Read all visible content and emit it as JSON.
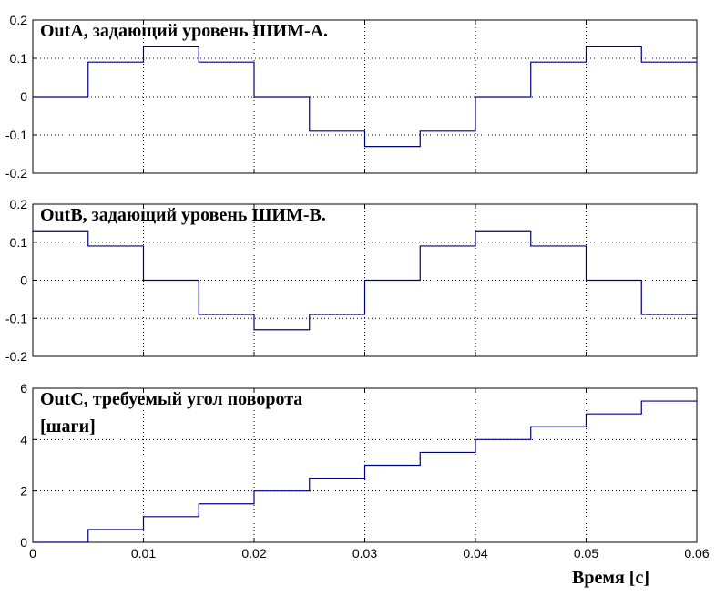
{
  "chart_data": [
    {
      "type": "line",
      "title": "OutA, задающий уровень ШИМ-A.",
      "xlim": [
        0,
        0.06
      ],
      "ylim": [
        -0.2,
        0.2
      ],
      "xticks": [
        0,
        0.01,
        0.02,
        0.03,
        0.04,
        0.05,
        0.06
      ],
      "xtick_labels": [
        "",
        "",
        "",
        "",
        "",
        "",
        ""
      ],
      "yticks": [
        -0.2,
        -0.1,
        0,
        0.1,
        0.2
      ],
      "ytick_labels": [
        "-0.2",
        "-0.1",
        "0",
        "0.1",
        "0.2"
      ],
      "grid": true,
      "step": true,
      "x": [
        0,
        0.005,
        0.01,
        0.015,
        0.02,
        0.025,
        0.03,
        0.035,
        0.04,
        0.045,
        0.05,
        0.055
      ],
      "y": [
        0,
        0.09,
        0.13,
        0.09,
        0,
        -0.09,
        -0.13,
        -0.09,
        0,
        0.09,
        0.13,
        0.09
      ]
    },
    {
      "type": "line",
      "title": "OutB, задающий уровень ШИМ-B.",
      "xlim": [
        0,
        0.06
      ],
      "ylim": [
        -0.2,
        0.2
      ],
      "xticks": [
        0,
        0.01,
        0.02,
        0.03,
        0.04,
        0.05,
        0.06
      ],
      "xtick_labels": [
        "",
        "",
        "",
        "",
        "",
        "",
        ""
      ],
      "yticks": [
        -0.2,
        -0.1,
        0,
        0.1,
        0.2
      ],
      "ytick_labels": [
        "-0.2",
        "-0.1",
        "0",
        "0.1",
        "0.2"
      ],
      "grid": true,
      "step": true,
      "x": [
        0,
        0.005,
        0.01,
        0.015,
        0.02,
        0.025,
        0.03,
        0.035,
        0.04,
        0.045,
        0.05,
        0.055
      ],
      "y": [
        0.13,
        0.09,
        0,
        -0.09,
        -0.13,
        -0.09,
        0,
        0.09,
        0.13,
        0.09,
        0,
        -0.09
      ]
    },
    {
      "type": "line",
      "title": "OutC, требуемый угол поворота",
      "title_line2": "[шаги]",
      "xlabel": "Время [с]",
      "xlim": [
        0,
        0.06
      ],
      "ylim": [
        0,
        6
      ],
      "xticks": [
        0,
        0.01,
        0.02,
        0.03,
        0.04,
        0.05,
        0.06
      ],
      "xtick_labels": [
        "0",
        "0.01",
        "0.02",
        "0.03",
        "0.04",
        "0.05",
        "0.06"
      ],
      "yticks": [
        0,
        2,
        4,
        6
      ],
      "ytick_labels": [
        "0",
        "2",
        "4",
        "6"
      ],
      "grid": true,
      "step": true,
      "x": [
        0,
        0.005,
        0.01,
        0.015,
        0.02,
        0.025,
        0.03,
        0.035,
        0.04,
        0.045,
        0.05,
        0.055
      ],
      "y": [
        0,
        0.5,
        1,
        1.5,
        2,
        2.5,
        3,
        3.5,
        4,
        4.5,
        5,
        5.5
      ]
    }
  ],
  "colors": {
    "series": "#000080",
    "axes": "#000000"
  }
}
